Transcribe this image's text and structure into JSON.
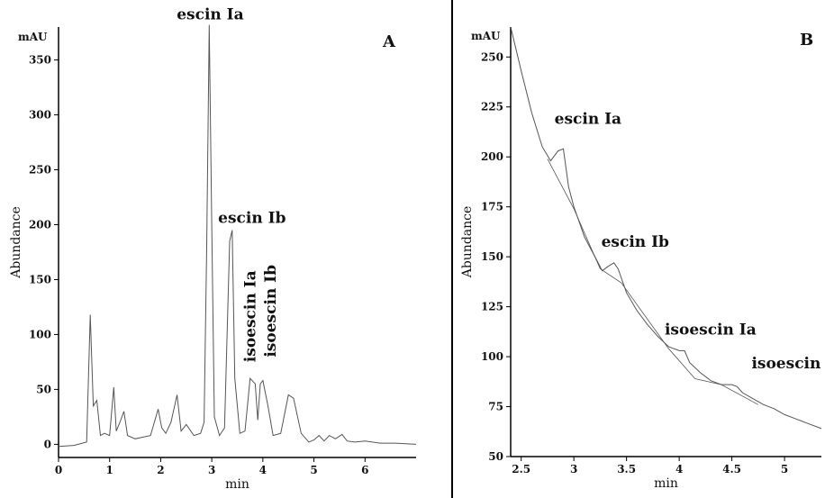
{
  "chart_data": [
    {
      "type": "line",
      "panel_label": "A",
      "unit_label": "mAU",
      "xlabel": "min",
      "ylabel": "Abundance",
      "xlim": [
        0,
        7
      ],
      "ylim": [
        -12,
        380
      ],
      "xticks": [
        0,
        1,
        2,
        3,
        4,
        5,
        6
      ],
      "yticks": [
        0,
        50,
        100,
        150,
        200,
        250,
        300,
        350
      ],
      "series": [
        {
          "x": [
            0,
            0.3,
            0.55,
            0.62,
            0.68,
            0.75,
            0.82,
            0.9,
            1.0,
            1.08,
            1.13,
            1.2,
            1.28,
            1.35,
            1.5,
            1.8,
            1.95,
            2.02,
            2.1,
            2.2,
            2.32,
            2.4,
            2.5,
            2.65,
            2.78,
            2.85,
            2.9,
            2.95,
            3.0,
            3.05,
            3.15,
            3.25,
            3.35,
            3.4,
            3.45,
            3.55,
            3.65,
            3.75,
            3.85,
            3.9,
            3.95,
            4.0,
            4.1,
            4.2,
            4.35,
            4.5,
            4.6,
            4.75,
            4.9,
            5.0,
            5.1,
            5.2,
            5.3,
            5.42,
            5.55,
            5.65,
            5.8,
            6.0,
            6.3,
            6.6,
            7.0
          ],
          "y": [
            -2,
            -1,
            2,
            118,
            35,
            40,
            8,
            10,
            8,
            52,
            12,
            20,
            30,
            8,
            5,
            8,
            32,
            15,
            10,
            20,
            45,
            12,
            18,
            8,
            10,
            20,
            180,
            382,
            200,
            25,
            8,
            15,
            185,
            195,
            60,
            10,
            12,
            60,
            55,
            22,
            55,
            58,
            35,
            8,
            10,
            45,
            42,
            10,
            2,
            4,
            8,
            3,
            8,
            5,
            9,
            3,
            2,
            3,
            1,
            1,
            0
          ]
        }
      ],
      "annotations": [
        {
          "text": "escin Ia",
          "x": 2.97,
          "y": 382
        },
        {
          "text": "escin Ib",
          "x": 3.4,
          "y": 195
        },
        {
          "text": "isoescin Ia",
          "x": 3.75,
          "y": 60
        },
        {
          "text": "isoescin Ib",
          "x": 4.0,
          "y": 58
        }
      ]
    },
    {
      "type": "line",
      "panel_label": "B",
      "unit_label": "mAU",
      "xlabel": "min",
      "ylabel": "Abundance",
      "xlim": [
        2.4,
        5.35
      ],
      "ylim": [
        50,
        265
      ],
      "xticks": [
        2.5,
        3,
        3.5,
        4,
        4.5,
        5
      ],
      "xtick_labels": [
        "2.5",
        "3",
        "3.5",
        "4",
        "4.5",
        "5"
      ],
      "yticks": [
        50,
        75,
        100,
        125,
        150,
        175,
        200,
        225,
        250
      ],
      "series": [
        {
          "x": [
            2.4,
            2.5,
            2.6,
            2.7,
            2.78,
            2.85,
            2.9,
            2.95,
            3.0,
            3.1,
            3.2,
            3.27,
            3.32,
            3.38,
            3.42,
            3.5,
            3.6,
            3.7,
            3.8,
            3.9,
            4.0,
            4.05,
            4.1,
            4.2,
            4.3,
            4.4,
            4.5,
            4.55,
            4.6,
            4.7,
            4.8,
            4.9,
            5.0,
            5.1,
            5.2,
            5.35
          ],
          "y": [
            265,
            243,
            222,
            205,
            198,
            203,
            204,
            185,
            175,
            160,
            150,
            143,
            145,
            147,
            144,
            132,
            123,
            116,
            110,
            105,
            103,
            103,
            97,
            92,
            88,
            86,
            86,
            85,
            82,
            79,
            76,
            74,
            71,
            69,
            67,
            64
          ]
        },
        {
          "x": [
            2.75,
            3.0,
            3.25,
            3.45,
            3.9,
            4.15,
            4.4,
            4.75
          ],
          "y": [
            199,
            174,
            144,
            137,
            104,
            89,
            86,
            76
          ]
        }
      ],
      "annotations": [
        {
          "text": "escin Ia",
          "x": 2.85,
          "y": 204
        },
        {
          "text": "escin Ib",
          "x": 3.38,
          "y": 147
        },
        {
          "text": "isoescin Ia",
          "x": 4.05,
          "y": 103
        },
        {
          "text": "isoescin Ib",
          "x": 4.55,
          "y": 86
        }
      ]
    }
  ]
}
